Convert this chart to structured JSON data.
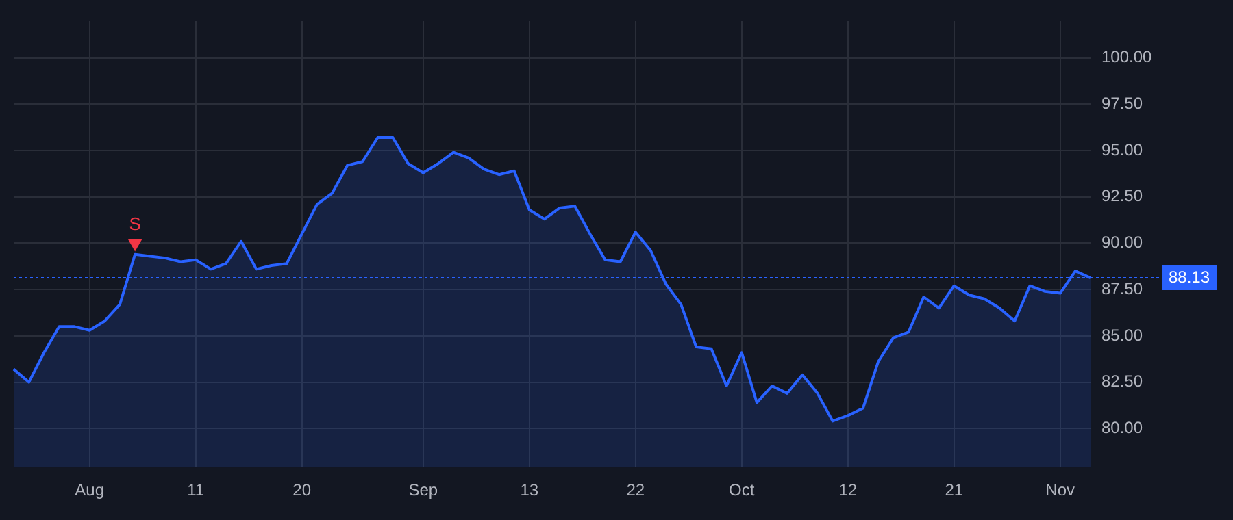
{
  "chart_data": {
    "type": "area",
    "categories": [
      null,
      null,
      null,
      null,
      null,
      "Aug",
      null,
      null,
      null,
      null,
      null,
      null,
      "11",
      null,
      null,
      null,
      null,
      null,
      null,
      "20",
      null,
      null,
      null,
      null,
      null,
      null,
      null,
      "Sep",
      null,
      null,
      null,
      null,
      null,
      null,
      "13",
      null,
      null,
      null,
      null,
      null,
      null,
      "22",
      null,
      null,
      null,
      null,
      null,
      null,
      "Oct",
      null,
      null,
      null,
      null,
      null,
      null,
      "12",
      null,
      null,
      null,
      null,
      null,
      null,
      "21",
      null,
      null,
      null,
      null,
      null,
      null,
      "Nov",
      null,
      null
    ],
    "series": [
      {
        "color": "#2962ff",
        "values": [
          83.2,
          82.5,
          84.1,
          85.5,
          85.5,
          85.3,
          85.8,
          86.7,
          89.4,
          89.3,
          89.2,
          89.0,
          89.1,
          88.6,
          88.9,
          90.1,
          88.6,
          88.8,
          88.9,
          90.5,
          92.1,
          92.7,
          94.2,
          94.4,
          95.7,
          95.7,
          94.3,
          93.8,
          94.3,
          94.9,
          94.6,
          94.0,
          93.7,
          93.9,
          91.8,
          91.3,
          91.9,
          92.0,
          90.5,
          89.1,
          89.0,
          90.6,
          89.6,
          87.8,
          86.7,
          84.4,
          84.3,
          82.3,
          84.1,
          81.4,
          82.3,
          81.9,
          82.9,
          81.9,
          80.4,
          80.7,
          81.1,
          83.6,
          84.9,
          85.2,
          87.1,
          86.5,
          87.7,
          87.2,
          87.0,
          86.5,
          85.8,
          87.7,
          87.4,
          87.3,
          88.5,
          88.13
        ]
      },
      {
        "type": "scatter",
        "name": "S",
        "color": "#f23645",
        "marker": "triangle",
        "values": [
          null,
          null,
          null,
          null,
          null,
          null,
          null,
          null,
          90.0,
          null,
          null,
          null,
          null,
          null,
          null,
          null,
          null,
          null,
          null,
          null,
          null,
          null,
          null,
          null,
          null,
          null,
          null,
          null,
          null,
          null,
          null,
          null,
          null,
          null,
          null,
          null,
          null,
          null,
          null,
          null,
          null,
          null,
          null,
          null,
          null,
          null,
          null,
          null,
          null,
          null,
          null,
          null,
          null,
          null,
          null,
          null,
          null,
          null,
          null,
          null,
          null,
          null,
          null,
          null,
          null,
          null,
          null,
          null,
          null,
          null,
          null,
          null
        ]
      }
    ],
    "ylim": [
      77.9,
      102
    ],
    "yticks": [
      {
        "value": 80,
        "label": "80.00"
      },
      {
        "value": 82.5,
        "label": "82.50"
      },
      {
        "value": 85,
        "label": "85.00"
      },
      {
        "value": 87.5,
        "label": "87.50"
      },
      {
        "value": 90,
        "label": "90.00"
      },
      {
        "value": 92.5,
        "label": "92.50"
      },
      {
        "value": 95,
        "label": "95.00"
      },
      {
        "value": 97.5,
        "label": "97.50"
      },
      {
        "value": 100,
        "label": "100.00"
      }
    ],
    "ref_lines": [
      {
        "axis": "y",
        "value": 88.13,
        "label": "88.13",
        "color": "#2962ff",
        "line_style": "dotted"
      }
    ],
    "grid": true,
    "legend": false,
    "line_style": "solid"
  }
}
